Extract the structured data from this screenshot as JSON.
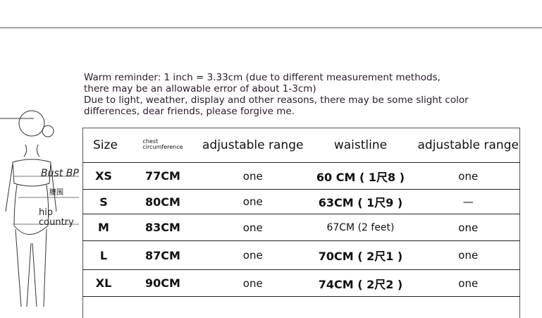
{
  "notes": [
    "Warm reminder: 1 inch = 3.33cm (due to different measurement methods,",
    "there may be an allowable error of about 1-3cm)",
    "Due to light, weather, display and other reasons, there may be some slight color",
    "differences, dear friends, please forgive me."
  ],
  "figure_labels": {
    "bust": "Bust BP",
    "waist": "腰围",
    "hip1": "hip",
    "hip2": "country"
  },
  "table": {
    "headers": [
      "Size",
      "chest",
      "circumference",
      "adjustable range",
      "waistline",
      "adjustable range"
    ],
    "rows": [
      {
        "size": "XS",
        "chest": "77CM",
        "adj1": "one",
        "waist": "60 CM ( 1尺8 )",
        "adj2": "one"
      },
      {
        "size": "S",
        "chest": "80CM",
        "adj1": "one",
        "waist": "63CM ( 1尺9 )",
        "adj2": "—"
      },
      {
        "size": "M",
        "chest": "83CM",
        "adj1": "one",
        "waist": "67CM (2 feet)",
        "adj2": "one"
      },
      {
        "size": "L",
        "chest": "87CM",
        "adj1": "one",
        "waist": "70CM ( 2尺1 )",
        "adj2": "one"
      },
      {
        "size": "XL",
        "chest": "90CM",
        "adj1": "one",
        "waist": "74CM ( 2尺2 )",
        "adj2": "one"
      }
    ]
  }
}
